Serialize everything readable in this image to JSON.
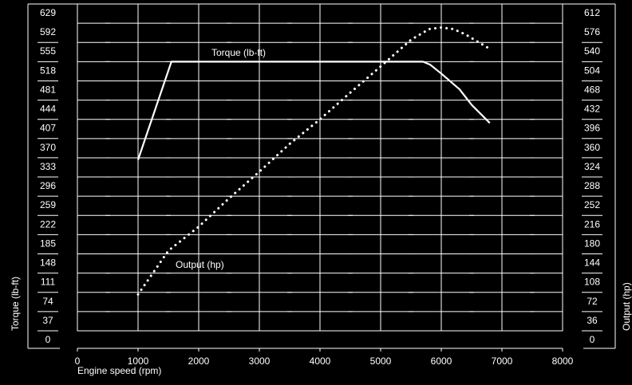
{
  "chart_data": {
    "type": "line",
    "xlabel": "Engine speed (rpm)",
    "ylabel_left": "Torque (lb-ft)",
    "ylabel_right": "Output (hp)",
    "xlim": [
      0,
      8000
    ],
    "x_ticks": [
      "0",
      "1000",
      "2000",
      "3000",
      "4000",
      "5000",
      "6000",
      "7000",
      "8000"
    ],
    "ylim_left": [
      0,
      629
    ],
    "ylim_right": [
      0,
      612
    ],
    "y_left_ticks": [
      "0",
      "37",
      "74",
      "111",
      "148",
      "185",
      "222",
      "259",
      "296",
      "333",
      "370",
      "407",
      "444",
      "481",
      "518",
      "555",
      "592",
      "629"
    ],
    "y_right_ticks": [
      "0",
      "36",
      "72",
      "108",
      "144",
      "180",
      "216",
      "252",
      "288",
      "324",
      "360",
      "396",
      "432",
      "468",
      "504",
      "540",
      "576",
      "612"
    ],
    "grid": true,
    "colors": {
      "background": "#000000",
      "foreground": "#ffffff"
    },
    "series": [
      {
        "name": "Torque (lb-ft)",
        "axis": "left",
        "style": "solid",
        "x": [
          1000,
          1550,
          5700,
          5820,
          6000,
          6300,
          6500,
          6800
        ],
        "y": [
          329,
          518,
          518,
          512,
          495,
          465,
          435,
          400
        ]
      },
      {
        "name": "Output (hp)",
        "axis": "right",
        "style": "dotted",
        "x": [
          1000,
          1500,
          2000,
          2500,
          3000,
          3500,
          4000,
          4500,
          5000,
          5500,
          5800,
          6000,
          6200,
          6400,
          6800
        ],
        "y": [
          68,
          150,
          195,
          248,
          298,
          350,
          396,
          446,
          495,
          545,
          565,
          568,
          565,
          555,
          528
        ]
      }
    ]
  }
}
